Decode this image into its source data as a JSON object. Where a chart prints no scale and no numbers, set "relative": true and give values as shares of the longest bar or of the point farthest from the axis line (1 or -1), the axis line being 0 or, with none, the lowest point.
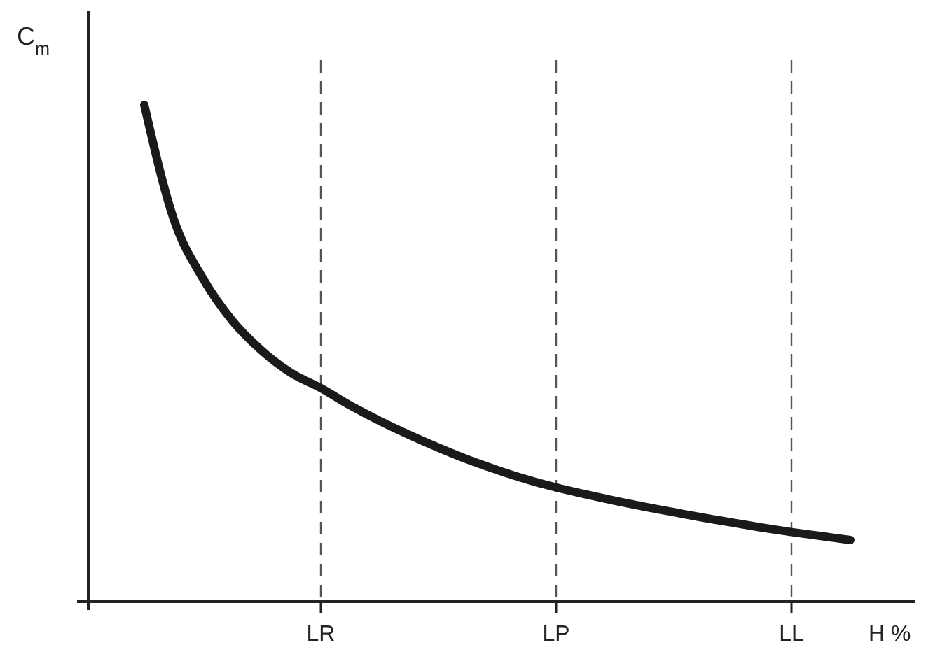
{
  "chart_data": {
    "type": "line",
    "ylabel": "C$_{m}$",
    "xlabel": "H %",
    "relative": true,
    "categories": [
      null,
      null,
      null,
      null,
      null,
      null,
      "LR",
      null,
      null,
      null,
      null,
      null,
      null,
      null,
      "LP",
      null,
      null,
      null,
      null,
      null,
      null,
      null,
      "LL",
      null,
      null
    ],
    "series": [
      {
        "color": "#1a1a1a",
        "values": [
          1,
          0.77,
          0.65,
          0.565,
          0.505,
          0.46,
          0.43,
          0.395,
          0.364,
          0.336,
          0.31,
          0.286,
          0.265,
          0.246,
          0.23,
          0.216,
          0.203,
          0.191,
          0.18,
          0.169,
          0.159,
          0.149,
          0.14,
          0.132,
          0.124
        ]
      }
    ],
    "ref_lines": [
      {
        "axis": "x",
        "value": "LR",
        "line_style": "dashed",
        "color": "#555555"
      },
      {
        "axis": "x",
        "value": "LP",
        "line_style": "dashed",
        "color": "#555555"
      },
      {
        "axis": "x",
        "value": "LL",
        "line_style": "dashed",
        "color": "#555555"
      }
    ],
    "marker": "none",
    "line_style": "solid",
    "grid": false
  }
}
